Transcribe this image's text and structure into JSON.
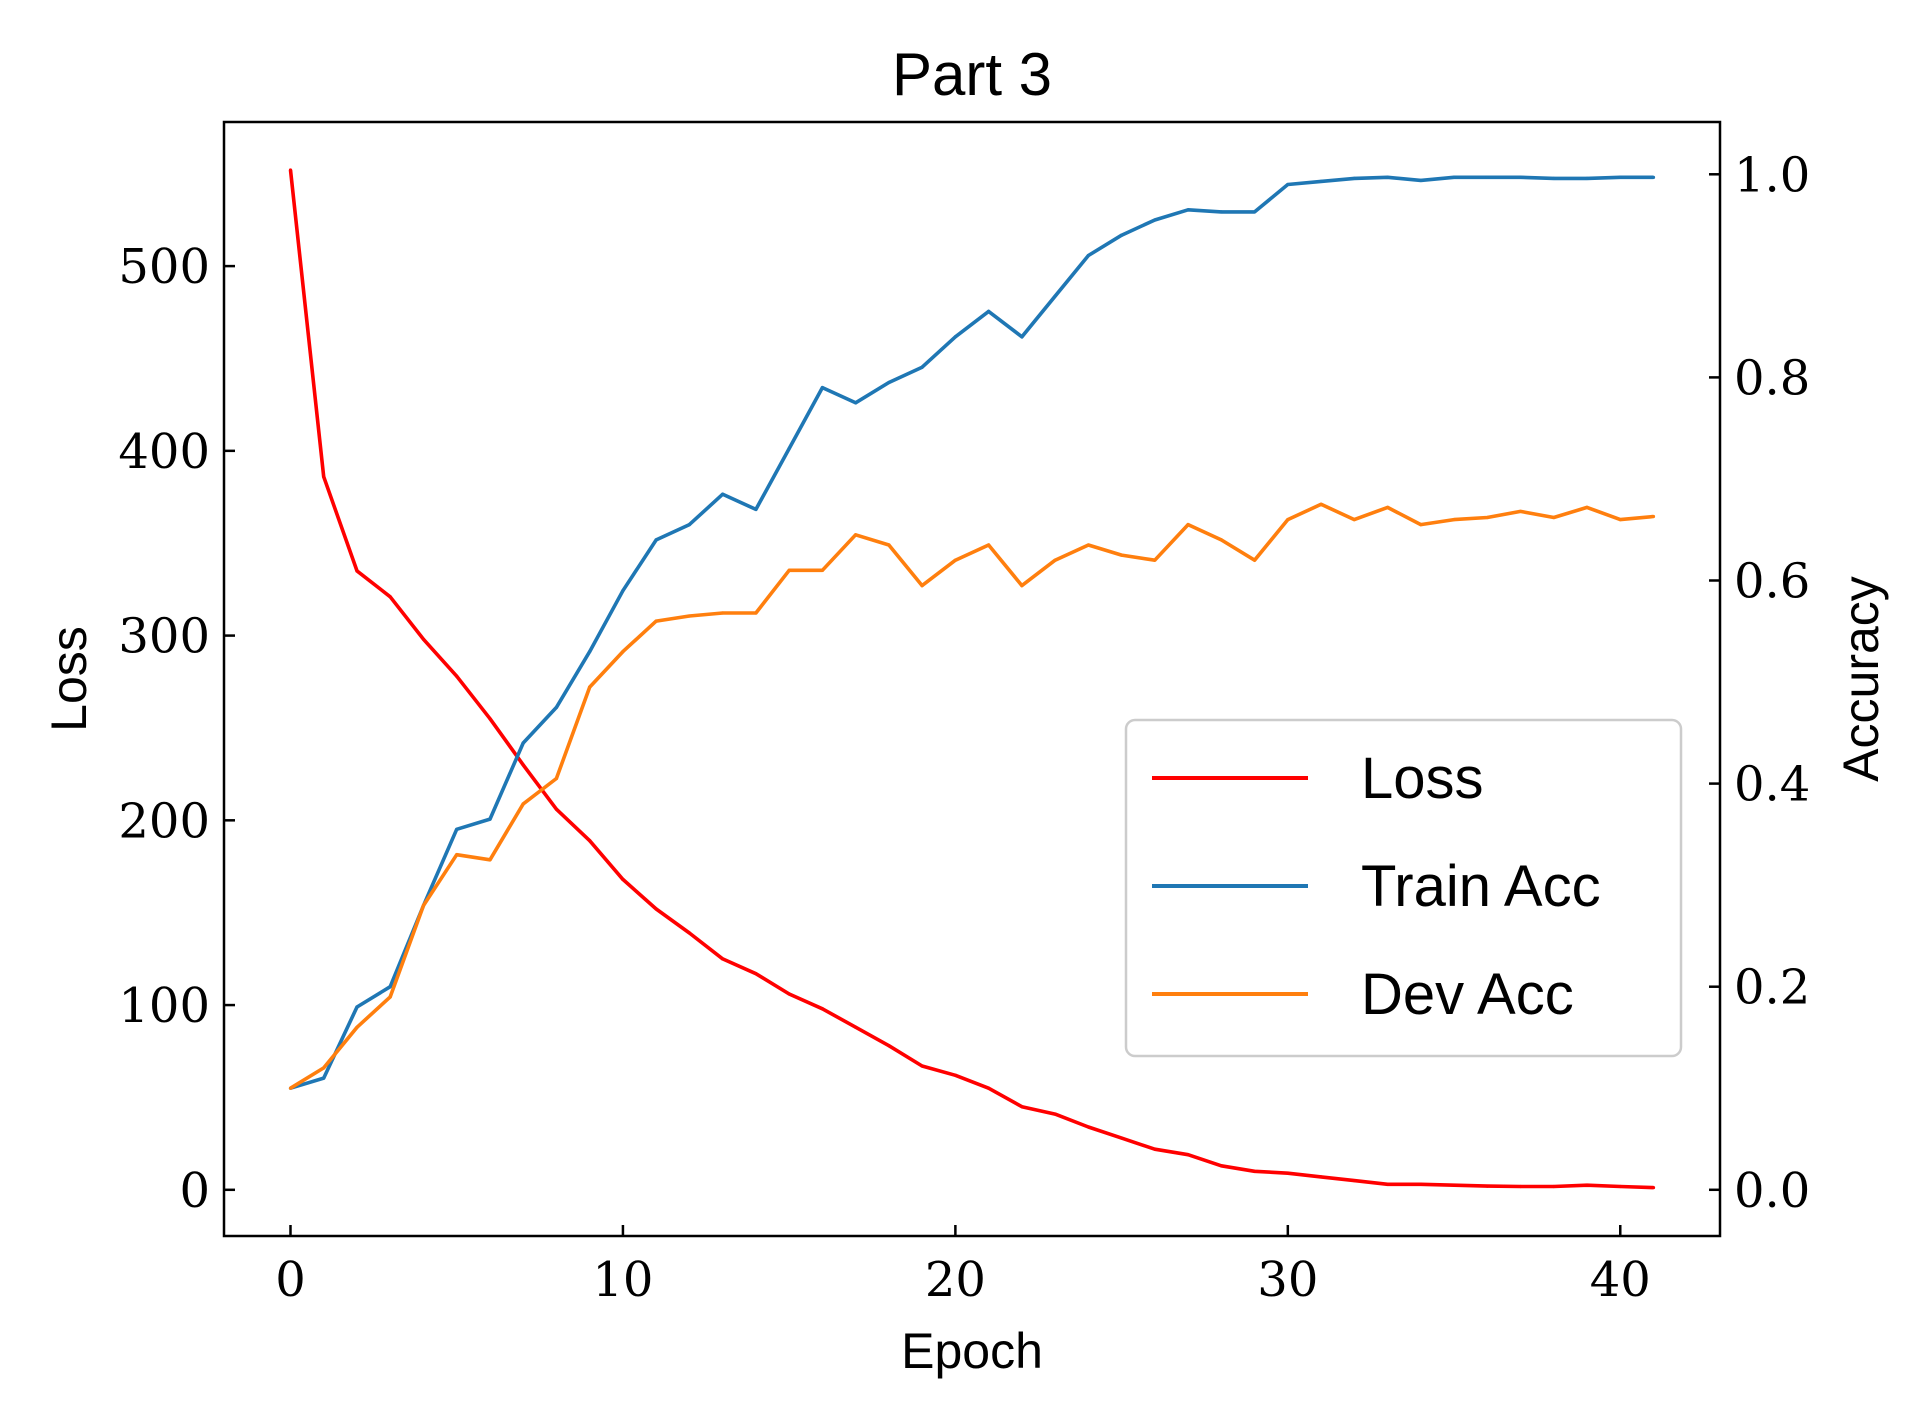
{
  "chart_data": {
    "type": "line",
    "title": "Part 3",
    "xlabel": "Epoch",
    "ylabel": "Loss",
    "y2label": "Accuracy",
    "xlim": [
      -2,
      43
    ],
    "ylim": [
      -25,
      578
    ],
    "y2lim": [
      -0.0455,
      1.0515
    ],
    "x_ticks": [
      0,
      10,
      20,
      30,
      40
    ],
    "y_ticks": [
      0,
      100,
      200,
      300,
      400,
      500
    ],
    "y2_ticks": [
      0.0,
      0.2,
      0.4,
      0.6,
      0.8,
      1.0
    ],
    "x_tick_labels": [
      "0",
      "10",
      "20",
      "30",
      "40"
    ],
    "y_tick_labels": [
      "0",
      "100",
      "200",
      "300",
      "400",
      "500"
    ],
    "y2_tick_labels": [
      "0.0",
      "0.2",
      "0.4",
      "0.6",
      "0.8",
      "1.0"
    ],
    "grid": false,
    "legend_position": "center-right",
    "x": [
      0,
      1,
      2,
      3,
      4,
      5,
      6,
      7,
      8,
      9,
      10,
      11,
      12,
      13,
      14,
      15,
      16,
      17,
      18,
      19,
      20,
      21,
      22,
      23,
      24,
      25,
      26,
      27,
      28,
      29,
      30,
      31,
      32,
      33,
      34,
      35,
      36,
      37,
      38,
      39,
      40,
      41
    ],
    "series": [
      {
        "name": "Loss",
        "axis": "left",
        "color": "#ff0000",
        "values": [
          552,
          386,
          335,
          321,
          298,
          278,
          255,
          230,
          206,
          189,
          168,
          152,
          139,
          125,
          117,
          106,
          98,
          88,
          78,
          67,
          62,
          55,
          45,
          41,
          34,
          28,
          22,
          19,
          13,
          10,
          9,
          7,
          5,
          3,
          3,
          2.5,
          2,
          1.8,
          1.8,
          2.5,
          1.8,
          1.2
        ]
      },
      {
        "name": "Train Acc",
        "axis": "right",
        "color": "#1f77b4",
        "values": [
          0.1,
          0.11,
          0.18,
          0.2,
          0.28,
          0.355,
          0.365,
          0.44,
          0.475,
          0.53,
          0.59,
          0.64,
          0.655,
          0.685,
          0.67,
          0.73,
          0.79,
          0.775,
          0.795,
          0.81,
          0.84,
          0.865,
          0.84,
          0.88,
          0.92,
          0.94,
          0.955,
          0.965,
          0.963,
          0.963,
          0.99,
          0.993,
          0.996,
          0.997,
          0.994,
          0.997,
          0.997,
          0.997,
          0.996,
          0.996,
          0.997,
          0.997
        ]
      },
      {
        "name": "Dev Acc",
        "axis": "right",
        "color": "#ff7f0e",
        "values": [
          0.1,
          0.12,
          0.16,
          0.19,
          0.28,
          0.33,
          0.325,
          0.38,
          0.405,
          0.495,
          0.53,
          0.56,
          0.565,
          0.568,
          0.568,
          0.61,
          0.61,
          0.645,
          0.635,
          0.595,
          0.62,
          0.635,
          0.595,
          0.62,
          0.635,
          0.625,
          0.62,
          0.655,
          0.64,
          0.62,
          0.66,
          0.675,
          0.66,
          0.672,
          0.655,
          0.66,
          0.662,
          0.668,
          0.662,
          0.672,
          0.66,
          0.663
        ]
      }
    ]
  }
}
